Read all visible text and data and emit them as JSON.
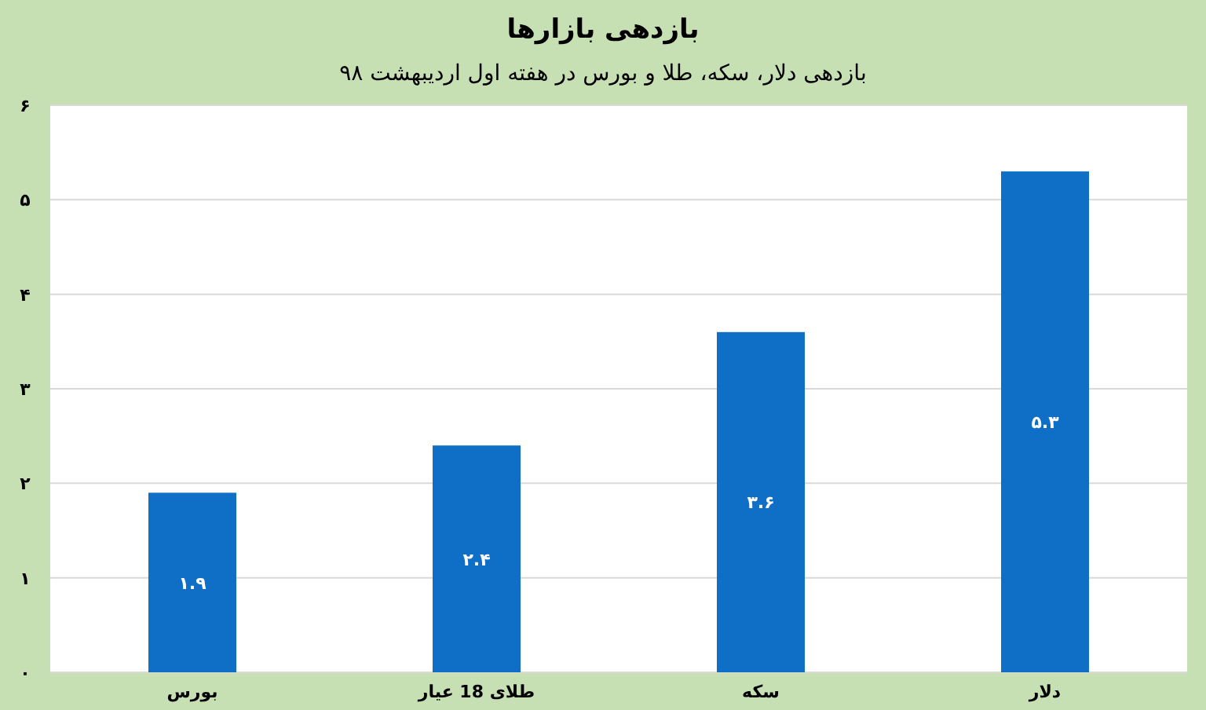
{
  "chart_data": {
    "type": "bar",
    "title": "بازدهی بازارها",
    "subtitle": "بازدهی دلار، سکه، طلا و بورس در هفته اول اردیبهشت ۹۸",
    "categories": [
      "بورس",
      "طلای 18 عیار",
      "سکه",
      "دلار"
    ],
    "values": [
      1.9,
      2.4,
      3.6,
      5.3
    ],
    "value_labels": [
      "۱.۹",
      "۲.۴",
      "۳.۶",
      "۵.۳"
    ],
    "color": "#0f6fc6",
    "ylim": [
      0,
      6
    ],
    "yticks": [
      {
        "value": 0,
        "label": "۰"
      },
      {
        "value": 1,
        "label": "۱"
      },
      {
        "value": 2,
        "label": "۲"
      },
      {
        "value": 3,
        "label": "۳"
      },
      {
        "value": 4,
        "label": "۴"
      },
      {
        "value": 5,
        "label": "۵"
      },
      {
        "value": 6,
        "label": "۶"
      }
    ],
    "grid": "y"
  }
}
